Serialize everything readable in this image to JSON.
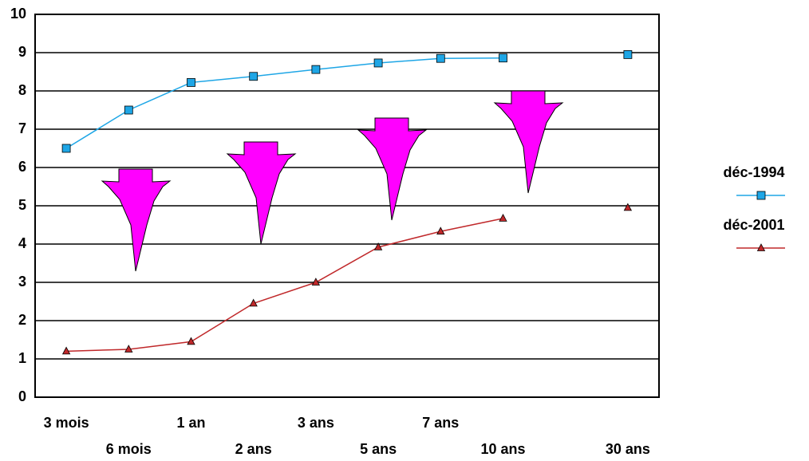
{
  "chart_data": {
    "type": "line",
    "categories": [
      "3 mois",
      "6 mois",
      "1 an",
      "2 ans",
      "3 ans",
      "5 ans",
      "7 ans",
      "10 ans",
      null,
      "30 ans"
    ],
    "series": [
      {
        "name": "déc-1994",
        "color": "#1ea6e6",
        "marker": "square",
        "values": [
          6.5,
          7.5,
          8.22,
          8.38,
          8.56,
          8.73,
          8.85,
          8.86,
          null,
          8.95
        ]
      },
      {
        "name": "déc-2001",
        "color": "#c0282a",
        "marker": "triangle",
        "values": [
          1.2,
          1.25,
          1.45,
          2.45,
          3.0,
          3.92,
          4.33,
          4.67,
          null,
          4.95
        ]
      }
    ],
    "ylim": [
      0,
      10
    ],
    "yticks": [
      0,
      1,
      2,
      3,
      4,
      5,
      6,
      7,
      8,
      9,
      10
    ],
    "grid": true,
    "legend": "right"
  }
}
